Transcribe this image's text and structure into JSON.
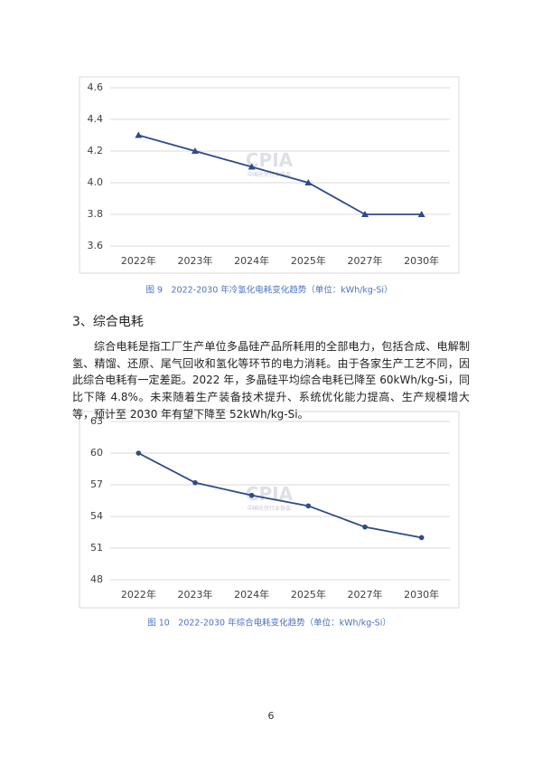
{
  "chart_data": [
    {
      "type": "line",
      "caption": "图 9　2022-2030 年冷氢化电耗变化趋势（单位：kWh/kg-Si）",
      "watermark": "CPIA",
      "watermark_subtitle": "中国光伏行业协会",
      "categories": [
        "2022年",
        "2023年",
        "2024年",
        "2025年",
        "2027年",
        "2030年"
      ],
      "values": [
        4.3,
        4.2,
        4.1,
        4.0,
        3.8,
        3.8
      ],
      "color": "#2f4b8a",
      "marker": "triangle",
      "ylim": [
        3.6,
        4.6
      ],
      "yticks": [
        3.6,
        3.8,
        {
          "value": 4,
          "label": "4.0"
        },
        4.2,
        4.4,
        4.6
      ],
      "grid": true
    },
    {
      "type": "line",
      "caption": "图 10　2022-2030 年综合电耗变化趋势（单位：kWh/kg-Si）",
      "watermark": "CPIA",
      "watermark_subtitle": "中国光伏行业协会",
      "categories": [
        "2022年",
        "2023年",
        "2024年",
        "2025年",
        "2027年",
        "2030年"
      ],
      "values": [
        60,
        57.2,
        56,
        55,
        53,
        52
      ],
      "color": "#2f4b8a",
      "marker": "circle",
      "ylim": [
        48,
        63
      ],
      "yticks": [
        48,
        51,
        54,
        57,
        60,
        63
      ],
      "grid": true
    }
  ],
  "section": {
    "heading": "3、综合电耗",
    "paragraph": "综合电耗是指工厂生产单位多晶硅产品所耗用的全部电力，包括合成、电解制氢、精馏、还原、尾气回收和氢化等环节的电力消耗。由于各家生产工艺不同，因此综合电耗有一定差距。2022 年，多晶硅平均综合电耗已降至 60kWh/kg-Si，同比下降 4.8%。未来随着生产装备技术提升、系统优化能力提高、生产规模增大等，预计至 2030 年有望下降至 52kWh/kg-Si。"
  },
  "page_number": "6"
}
